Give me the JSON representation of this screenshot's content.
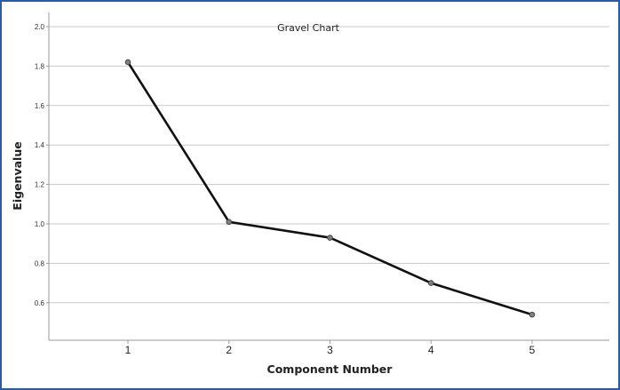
{
  "chart_data": {
    "type": "line",
    "title": "Gravel Chart",
    "xlabel": "Component Number",
    "ylabel": "Eigenvalue",
    "categories": [
      "1",
      "2",
      "3",
      "4",
      "5"
    ],
    "series": [
      {
        "values": [
          1.82,
          1.01,
          0.93,
          0.7,
          0.54
        ]
      }
    ],
    "ylim": [
      0.5,
      2.1
    ],
    "yticks": [
      "0.6",
      "0.8",
      "1.0",
      "1.2",
      "1.4",
      "1.6",
      "1.8",
      "2.0"
    ],
    "grid": true,
    "line_color": "#111111",
    "marker_color": "#808080"
  }
}
